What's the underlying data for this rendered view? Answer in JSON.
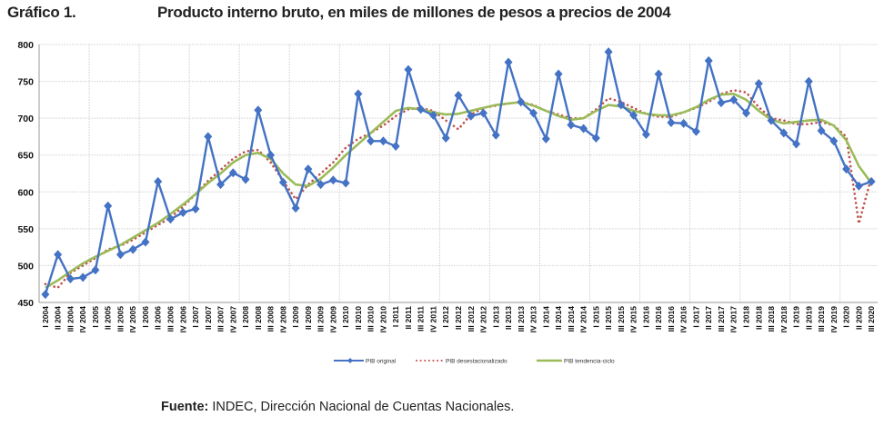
{
  "figure_label": "Gráfico 1.",
  "source": {
    "label": "Fuente:",
    "text": " INDEC, Dirección Nacional de Cuentas Nacionales."
  },
  "chart_data": {
    "type": "line",
    "title": "Producto interno bruto, en miles de millones de pesos a precios de 2004",
    "xlabel": "",
    "ylabel": "",
    "ylim": [
      450,
      800
    ],
    "yticks": [
      450,
      500,
      550,
      600,
      650,
      700,
      750,
      800
    ],
    "grid": true,
    "legend_position": "bottom",
    "categories": [
      "I 2004",
      "II 2004",
      "III 2004",
      "IV 2004",
      "I 2005",
      "II 2005",
      "III 2005",
      "IV 2005",
      "I 2006",
      "II 2006",
      "III 2006",
      "IV 2006",
      "I 2007",
      "II 2007",
      "III 2007",
      "IV 2007",
      "I 2008",
      "II 2008",
      "III 2008",
      "IV 2008",
      "I 2009",
      "II 2009",
      "III 2009",
      "IV 2009",
      "I 2010",
      "II 2010",
      "III 2010",
      "IV 2010",
      "I 2011",
      "II 2011",
      "III 2011",
      "IV 2011",
      "I 2012",
      "II 2012",
      "III 2012",
      "IV 2012",
      "I 2013",
      "II 2013",
      "III 2013",
      "IV 2013",
      "I 2014",
      "II 2014",
      "III 2014",
      "IV 2014",
      "I 2015",
      "II 2015",
      "III 2015",
      "IV 2015",
      "I 2016",
      "II 2016",
      "III 2016",
      "IV 2016",
      "I 2017",
      "II 2017",
      "III 2017",
      "IV 2017",
      "I 2018",
      "II 2018",
      "III 2018",
      "IV 2018",
      "I 2019",
      "II 2019",
      "III 2019",
      "IV 2019",
      "I 2020",
      "II 2020",
      "III 2020"
    ],
    "series": [
      {
        "name": "PIB original",
        "color": "#4472C4",
        "style": "line-diamond",
        "values": [
          461,
          515,
          482,
          484,
          494,
          581,
          515,
          522,
          532,
          614,
          563,
          572,
          577,
          675,
          610,
          626,
          617,
          711,
          650,
          613,
          578,
          631,
          610,
          616,
          612,
          733,
          669,
          669,
          662,
          766,
          712,
          704,
          673,
          731,
          703,
          707,
          677,
          776,
          722,
          707,
          672,
          760,
          691,
          686,
          673,
          790,
          718,
          704,
          678,
          760,
          694,
          693,
          682,
          778,
          721,
          725,
          707,
          747,
          697,
          680,
          665,
          750,
          683,
          669,
          631,
          608,
          614
        ]
      },
      {
        "name": "PIB desestacionalizado",
        "color": "#C0504D",
        "style": "dotted",
        "values": [
          475,
          470,
          490,
          500,
          510,
          522,
          527,
          535,
          545,
          555,
          565,
          580,
          597,
          615,
          630,
          645,
          655,
          657,
          640,
          615,
          590,
          610,
          625,
          640,
          660,
          672,
          680,
          690,
          703,
          712,
          714,
          710,
          697,
          685,
          705,
          714,
          717,
          720,
          722,
          718,
          710,
          705,
          700,
          700,
          712,
          727,
          722,
          714,
          706,
          702,
          702,
          708,
          714,
          722,
          733,
          738,
          735,
          715,
          700,
          697,
          692,
          692,
          695,
          690,
          675,
          557,
          620
        ]
      },
      {
        "name": "PIB tendencia-ciclo",
        "color": "#9BBB59",
        "style": "solid",
        "values": [
          470,
          480,
          492,
          503,
          512,
          520,
          528,
          538,
          548,
          558,
          570,
          583,
          597,
          612,
          625,
          640,
          650,
          653,
          645,
          625,
          610,
          608,
          618,
          633,
          650,
          665,
          680,
          695,
          710,
          714,
          712,
          708,
          705,
          706,
          710,
          714,
          718,
          720,
          722,
          717,
          710,
          703,
          698,
          700,
          710,
          718,
          716,
          710,
          706,
          704,
          704,
          708,
          715,
          725,
          732,
          733,
          725,
          710,
          698,
          693,
          695,
          697,
          698,
          690,
          670,
          635,
          612
        ]
      }
    ]
  }
}
